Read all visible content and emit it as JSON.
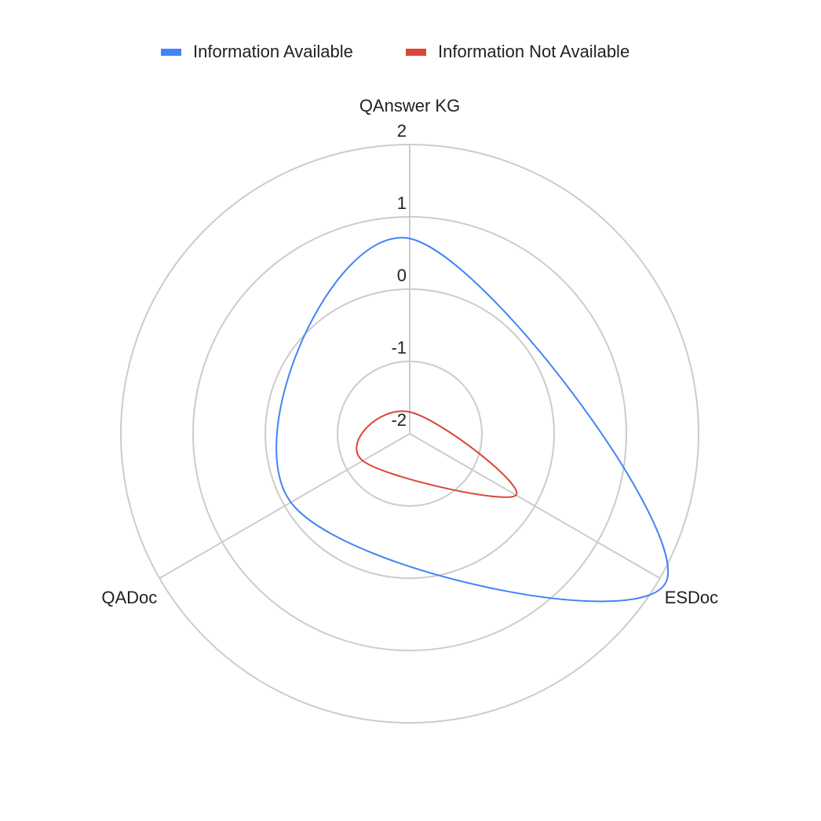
{
  "chart_data": {
    "type": "radar",
    "categories": [
      "QAnswer KG",
      "ESDoc",
      "QADoc"
    ],
    "series": [
      {
        "name": "Information Available",
        "color": "#4285f4",
        "values": [
          0.7,
          2.1,
          -0.1
        ]
      },
      {
        "name": "Information Not Available",
        "color": "#db4437",
        "values": [
          -1.7,
          -0.3,
          -1.25
        ]
      }
    ],
    "ylim": [
      -2,
      2
    ],
    "yticks": [
      -2,
      -1,
      0,
      1,
      2
    ],
    "grid": true,
    "legend": "top",
    "smooth": true
  }
}
